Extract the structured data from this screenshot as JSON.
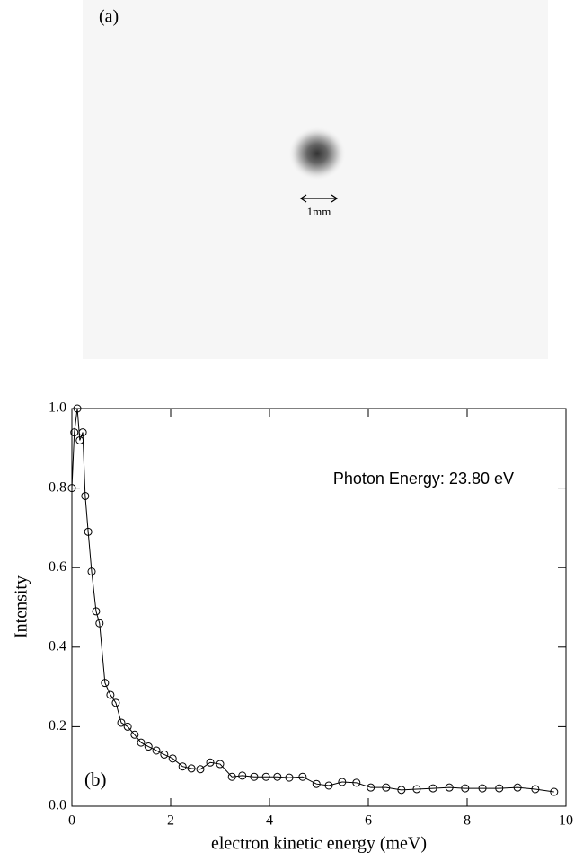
{
  "panel_a": {
    "label": "(a)",
    "scale_label": "1mm"
  },
  "chart_data": {
    "type": "line",
    "panel_label": "(b)",
    "annotation": "Photon Energy: 23.80 eV",
    "xlabel": "electron kinetic energy (meV)",
    "ylabel": "Intensity",
    "color": "#000000",
    "marker": "open-circle",
    "x": [
      0,
      0.05,
      0.11,
      0.16,
      0.22,
      0.27,
      0.33,
      0.4,
      0.49,
      0.56,
      0.67,
      0.78,
      0.89,
      1.0,
      1.13,
      1.27,
      1.4,
      1.55,
      1.71,
      1.87,
      2.04,
      2.24,
      2.42,
      2.6,
      2.8,
      3.0,
      3.24,
      3.45,
      3.69,
      3.93,
      4.16,
      4.4,
      4.67,
      4.95,
      5.2,
      5.47,
      5.76,
      6.05,
      6.36,
      6.67,
      6.98,
      7.31,
      7.64,
      7.96,
      8.31,
      8.65,
      9.02,
      9.38,
      9.76
    ],
    "values": [
      0.8,
      0.94,
      1.0,
      0.92,
      0.94,
      0.78,
      0.69,
      0.59,
      0.49,
      0.46,
      0.31,
      0.28,
      0.26,
      0.21,
      0.2,
      0.18,
      0.16,
      0.15,
      0.14,
      0.13,
      0.12,
      0.1,
      0.095,
      0.093,
      0.11,
      0.106,
      0.074,
      0.077,
      0.074,
      0.074,
      0.074,
      0.072,
      0.074,
      0.056,
      0.052,
      0.061,
      0.059,
      0.047,
      0.047,
      0.041,
      0.043,
      0.045,
      0.047,
      0.045,
      0.045,
      0.045,
      0.047,
      0.043,
      0.036
    ],
    "xlim": [
      0,
      10
    ],
    "xticks": [
      0,
      2,
      4,
      6,
      8,
      10
    ],
    "ylim": [
      0,
      1.0
    ],
    "yticks": [
      {
        "value": 0,
        "label": "0.0"
      },
      0.2,
      0.4,
      0.6,
      0.8,
      {
        "value": 1.0,
        "label": "1.0"
      }
    ],
    "grid": false
  }
}
